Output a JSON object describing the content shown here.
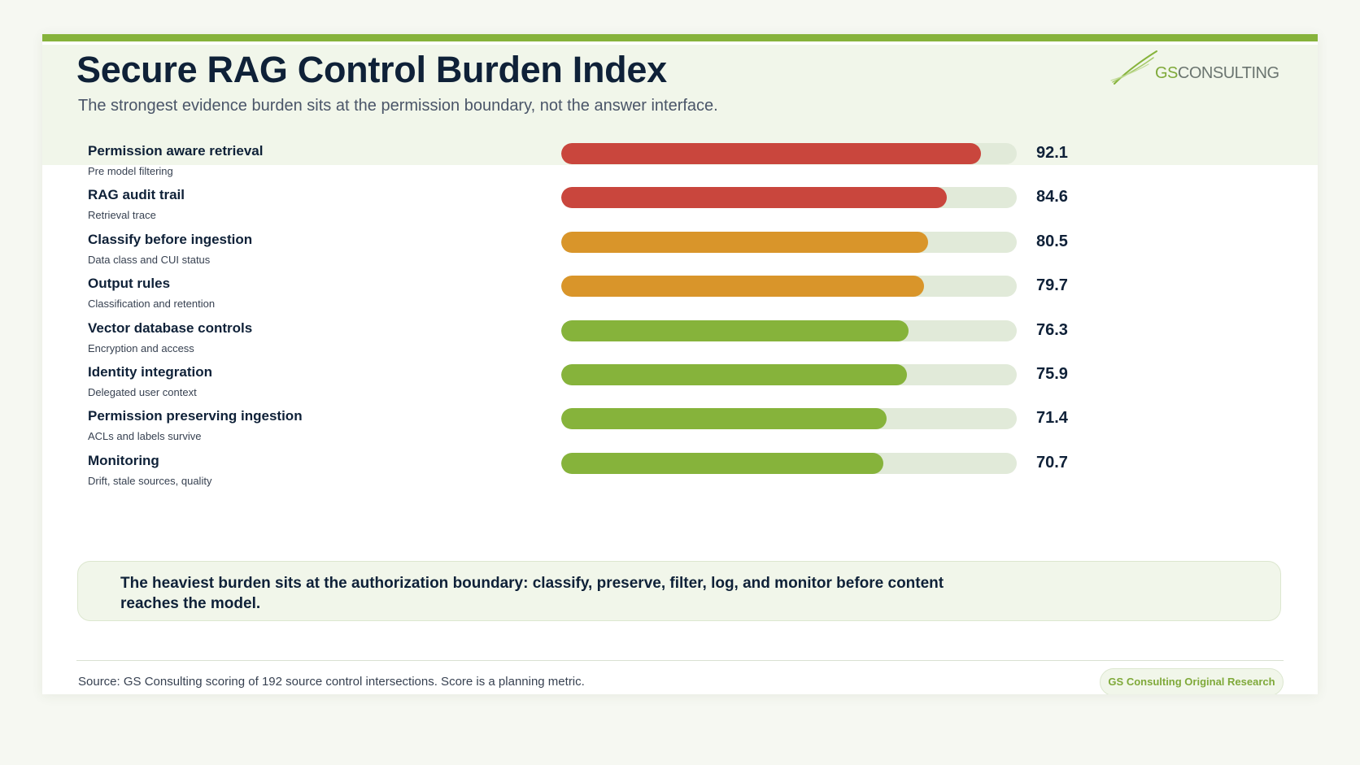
{
  "header": {
    "title": "Secure RAG Control Burden Index",
    "subtitle": "The strongest evidence burden sits at the permission boundary, not the answer interface.",
    "logo": {
      "gs": "GS",
      "rest": "CONSULTING"
    }
  },
  "colors": {
    "accent": "#86b33b",
    "high": "#c9463d",
    "medium": "#d9952a",
    "low": "#86b33b",
    "track": "#e1ead9"
  },
  "chart_data": {
    "type": "bar",
    "orientation": "horizontal",
    "xlim": [
      0,
      100
    ],
    "grid": false,
    "categories": [
      "Permission aware retrieval",
      "RAG audit trail",
      "Classify before ingestion",
      "Output rules",
      "Vector database controls",
      "Identity integration",
      "Permission preserving ingestion",
      "Monitoring"
    ],
    "descriptions": [
      "Pre model filtering",
      "Retrieval trace",
      "Data class and CUI status",
      "Classification and retention",
      "Encryption and access",
      "Delegated user context",
      "ACLs and labels survive",
      "Drift, stale sources, quality"
    ],
    "values": [
      92.1,
      84.6,
      80.5,
      79.7,
      76.3,
      75.9,
      71.4,
      70.7
    ],
    "value_labels": [
      "92.1",
      "84.6",
      "80.5",
      "79.7",
      "76.3",
      "75.9",
      "71.4",
      "70.7"
    ],
    "bar_colors": [
      "#c9463d",
      "#c9463d",
      "#d9952a",
      "#d9952a",
      "#86b33b",
      "#86b33b",
      "#86b33b",
      "#86b33b"
    ]
  },
  "callout": {
    "text": "The heaviest burden sits at the authorization boundary: classify, preserve, filter, log, and monitor before content reaches the model."
  },
  "footer": {
    "source": "Source: GS Consulting scoring of 192 source control intersections. Score is a planning metric.",
    "badge": "GS Consulting Original Research"
  }
}
